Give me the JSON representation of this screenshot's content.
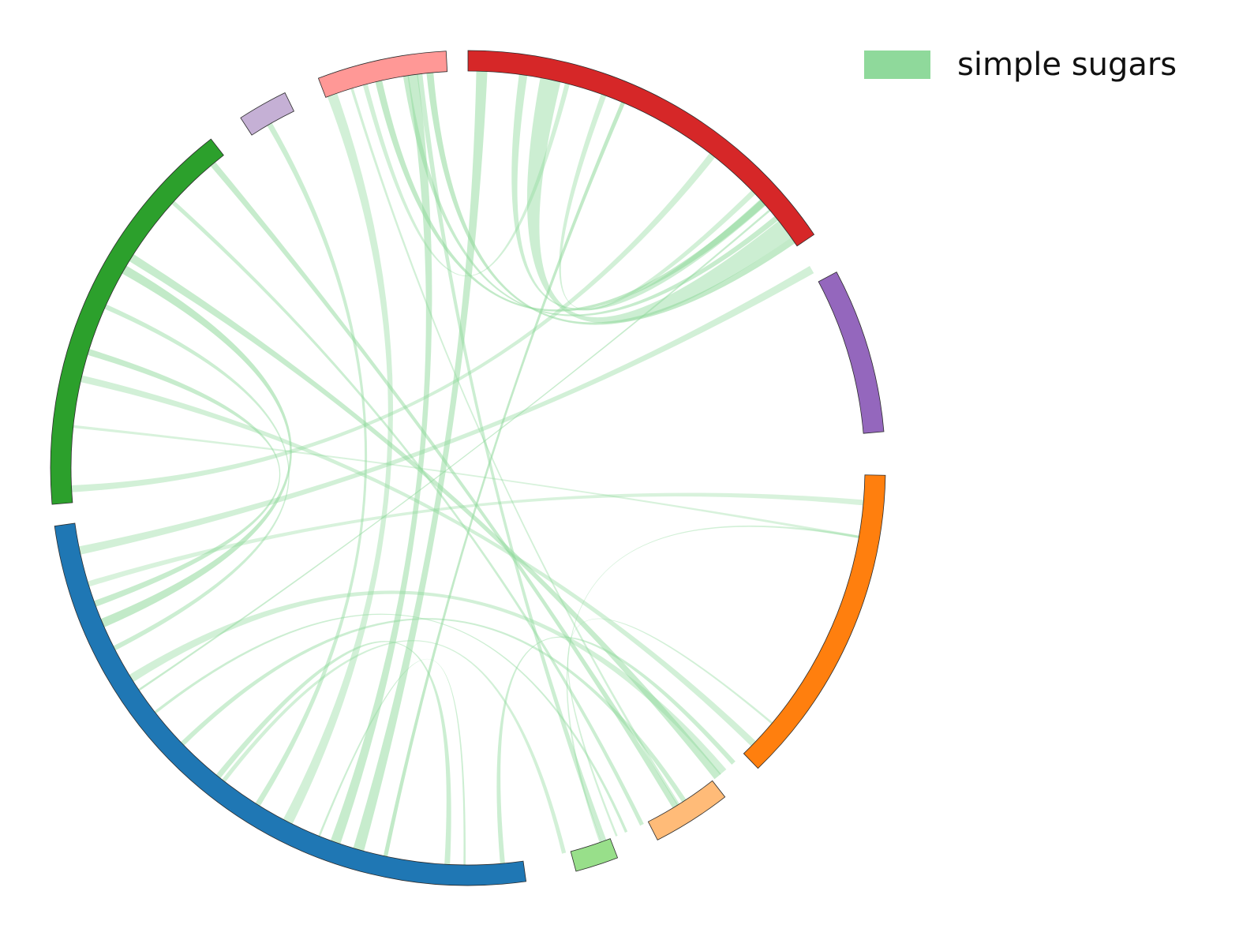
{
  "legend": {
    "label": "simple sugars",
    "color": "#8fd99b"
  },
  "chart_data": {
    "type": "chord",
    "ribbon_color": "#8fd99b",
    "segments": [
      {
        "id": "red",
        "color": "#d62728",
        "start": 0,
        "end": 56
      },
      {
        "id": "purple",
        "color": "#9467bd",
        "start": 62,
        "end": 85
      },
      {
        "id": "orange",
        "color": "#ff7f0e",
        "start": 91,
        "end": 136
      },
      {
        "id": "light-orange",
        "color": "#ffbb78",
        "start": 142,
        "end": 153
      },
      {
        "id": "light-green",
        "color": "#98df8a",
        "start": 159,
        "end": 165
      },
      {
        "id": "blue",
        "color": "#1f77b4",
        "start": 172,
        "end": 262
      },
      {
        "id": "green",
        "color": "#2ca02c",
        "start": 265,
        "end": 322
      },
      {
        "id": "lavender",
        "color": "#c5b0d5",
        "start": 327,
        "end": 334
      },
      {
        "id": "pink",
        "color": "#ff9896",
        "start": 339,
        "end": 357
      }
    ],
    "ribbons": [
      {
        "a": 2.0,
        "b": 196.0,
        "w": 1.6,
        "o": 0.5
      },
      {
        "a": 8.0,
        "b": 48.0,
        "w": 1.2,
        "o": 0.45
      },
      {
        "a": 12.0,
        "b": 53.0,
        "w": 3.0,
        "o": 0.45
      },
      {
        "a": 20.0,
        "b": 46.0,
        "w": 0.8,
        "o": 0.4
      },
      {
        "a": 23.0,
        "b": 192.0,
        "w": 0.6,
        "o": 0.55
      },
      {
        "a": 14.5,
        "b": 345.0,
        "w": 0.7,
        "o": 0.4
      },
      {
        "a": 48.0,
        "b": 347.0,
        "w": 1.0,
        "o": 0.55
      },
      {
        "a": 51.0,
        "b": 351.0,
        "w": 0.8,
        "o": 0.5
      },
      {
        "a": 49.5,
        "b": 236.0,
        "w": 0.3,
        "o": 0.5
      },
      {
        "a": 55.0,
        "b": 354.5,
        "w": 1.0,
        "o": 0.55
      },
      {
        "a": 353.0,
        "b": 160.0,
        "w": 0.8,
        "o": 0.45
      },
      {
        "a": 352.0,
        "b": 199.5,
        "w": 1.5,
        "o": 0.5
      },
      {
        "a": 340.0,
        "b": 207.0,
        "w": 1.5,
        "o": 0.4
      },
      {
        "a": 343.0,
        "b": 148.0,
        "w": 0.4,
        "o": 0.4
      },
      {
        "a": 330.0,
        "b": 212.0,
        "w": 0.8,
        "o": 0.45
      },
      {
        "a": 320.0,
        "b": 148.5,
        "w": 0.9,
        "o": 0.5
      },
      {
        "a": 312.0,
        "b": 154.0,
        "w": 0.6,
        "o": 0.45
      },
      {
        "a": 300.0,
        "b": 247.0,
        "w": 1.3,
        "o": 0.55
      },
      {
        "a": 302.0,
        "b": 141.0,
        "w": 1.2,
        "o": 0.5
      },
      {
        "a": 294.0,
        "b": 243.0,
        "w": 0.7,
        "o": 0.45
      },
      {
        "a": 287.0,
        "b": 250.0,
        "w": 0.9,
        "o": 0.5
      },
      {
        "a": 283.0,
        "b": 134.0,
        "w": 1.0,
        "o": 0.4
      },
      {
        "a": 276.0,
        "b": 100.0,
        "w": 0.4,
        "o": 0.35
      },
      {
        "a": 267.0,
        "b": 38.0,
        "w": 1.0,
        "o": 0.4
      },
      {
        "a": 258.0,
        "b": 60.0,
        "w": 1.2,
        "o": 0.4
      },
      {
        "a": 253.0,
        "b": 95.0,
        "w": 0.8,
        "o": 0.35
      },
      {
        "a": 238.0,
        "b": 140.0,
        "w": 1.2,
        "o": 0.4
      },
      {
        "a": 232.0,
        "b": 156.5,
        "w": 0.4,
        "o": 0.45
      },
      {
        "a": 226.0,
        "b": 147.0,
        "w": 0.7,
        "o": 0.45
      },
      {
        "a": 218.0,
        "b": 166.0,
        "w": 0.6,
        "o": 0.4
      },
      {
        "a": 183.0,
        "b": 219.0,
        "w": 0.8,
        "o": 0.45
      },
      {
        "a": 175.0,
        "b": 138.0,
        "w": 0.7,
        "o": 0.45
      },
      {
        "a": 180.5,
        "b": 202.0,
        "w": 0.3,
        "o": 0.45
      },
      {
        "a": 158.0,
        "b": 130.0,
        "w": 0.3,
        "o": 0.4
      },
      {
        "a": 160.5,
        "b": 100.0,
        "w": 0.3,
        "o": 0.4
      }
    ]
  }
}
